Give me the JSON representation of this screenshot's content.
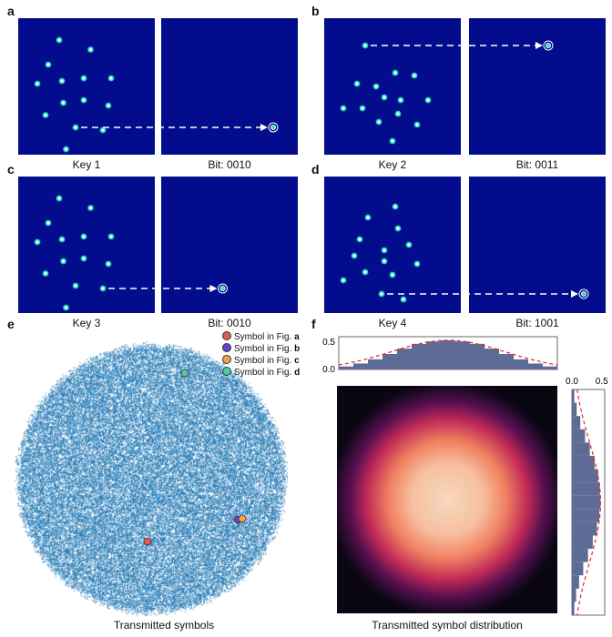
{
  "panels": [
    {
      "label": "a",
      "key_caption": "Key 1",
      "bit_caption": "Bit: 0010",
      "highlight_index": 11,
      "target": [
        0.82,
        0.64
      ]
    },
    {
      "label": "b",
      "key_caption": "Key 2",
      "bit_caption": "Bit: 0011",
      "highlight_index": 0,
      "target": [
        0.58,
        0.16
      ]
    },
    {
      "label": "c",
      "key_caption": "Key 3",
      "bit_caption": "Bit: 0010",
      "highlight_index": 12,
      "target": [
        0.45,
        0.74
      ]
    },
    {
      "label": "d",
      "key_caption": "Key 4",
      "bit_caption": "Bit: 1001",
      "highlight_index": 11,
      "target": [
        0.84,
        0.63
      ]
    }
  ],
  "constellations": {
    "set1": [
      [
        0.53,
        0.23
      ],
      [
        0.3,
        0.16
      ],
      [
        0.68,
        0.44
      ],
      [
        0.22,
        0.34
      ],
      [
        0.48,
        0.44
      ],
      [
        0.66,
        0.64
      ],
      [
        0.32,
        0.46
      ],
      [
        0.48,
        0.6
      ],
      [
        0.14,
        0.48
      ],
      [
        0.33,
        0.62
      ],
      [
        0.2,
        0.71
      ],
      [
        0.42,
        0.8
      ],
      [
        0.62,
        0.82
      ],
      [
        0.35,
        0.96
      ]
    ],
    "set2": [
      [
        0.3,
        0.2
      ],
      [
        0.38,
        0.5
      ],
      [
        0.52,
        0.4
      ],
      [
        0.24,
        0.48
      ],
      [
        0.44,
        0.58
      ],
      [
        0.66,
        0.42
      ],
      [
        0.56,
        0.6
      ],
      [
        0.76,
        0.6
      ],
      [
        0.28,
        0.66
      ],
      [
        0.54,
        0.7
      ],
      [
        0.4,
        0.76
      ],
      [
        0.68,
        0.78
      ],
      [
        0.5,
        0.9
      ],
      [
        0.14,
        0.66
      ]
    ],
    "set3": [
      [
        0.32,
        0.3
      ],
      [
        0.52,
        0.22
      ],
      [
        0.54,
        0.38
      ],
      [
        0.26,
        0.46
      ],
      [
        0.44,
        0.54
      ],
      [
        0.62,
        0.5
      ],
      [
        0.68,
        0.64
      ],
      [
        0.3,
        0.7
      ],
      [
        0.5,
        0.72
      ],
      [
        0.22,
        0.58
      ],
      [
        0.14,
        0.76
      ],
      [
        0.42,
        0.86
      ],
      [
        0.58,
        0.9
      ],
      [
        0.44,
        0.62
      ]
    ]
  },
  "panel_constellation": [
    "set1",
    "set2",
    "set1",
    "set3"
  ],
  "panel_e": {
    "label": "e",
    "caption": "Transmitted symbols",
    "legend": [
      {
        "text": "Symbol in Fig. ",
        "bold": "a",
        "color": "#e05a5a"
      },
      {
        "text": "Symbol in Fig. ",
        "bold": "b",
        "color": "#6a3fd6"
      },
      {
        "text": "Symbol in Fig. ",
        "bold": "c",
        "color": "#f0a24a"
      },
      {
        "text": "Symbol in Fig. ",
        "bold": "d",
        "color": "#4cc9a3"
      }
    ],
    "cloud_color": "#1f77b4"
  },
  "panel_f": {
    "label": "f",
    "caption": "Transmitted symbol distribution",
    "hist_top_ticks": [
      "0.5",
      "0.0"
    ],
    "hist_right_ticks": [
      "0.0",
      "0.5"
    ],
    "bar_color": "#5e6b94",
    "fit_color": "#e0242e"
  },
  "chart_data": [
    {
      "type": "bar",
      "title": "",
      "values": [
        0.05,
        0.1,
        0.17,
        0.26,
        0.35,
        0.43,
        0.47,
        0.49,
        0.47,
        0.43,
        0.35,
        0.26,
        0.17,
        0.1,
        0.05
      ],
      "ylim": [
        0,
        0.55
      ],
      "xlabel": "",
      "ylabel": ""
    },
    {
      "type": "bar",
      "title": "",
      "values": [
        0.04,
        0.08,
        0.14,
        0.22,
        0.3,
        0.38,
        0.44,
        0.47,
        0.48,
        0.46,
        0.42,
        0.35,
        0.27,
        0.19,
        0.12,
        0.07,
        0.04
      ],
      "xlim": [
        0,
        0.55
      ],
      "xlabel": "",
      "ylabel": ""
    }
  ]
}
